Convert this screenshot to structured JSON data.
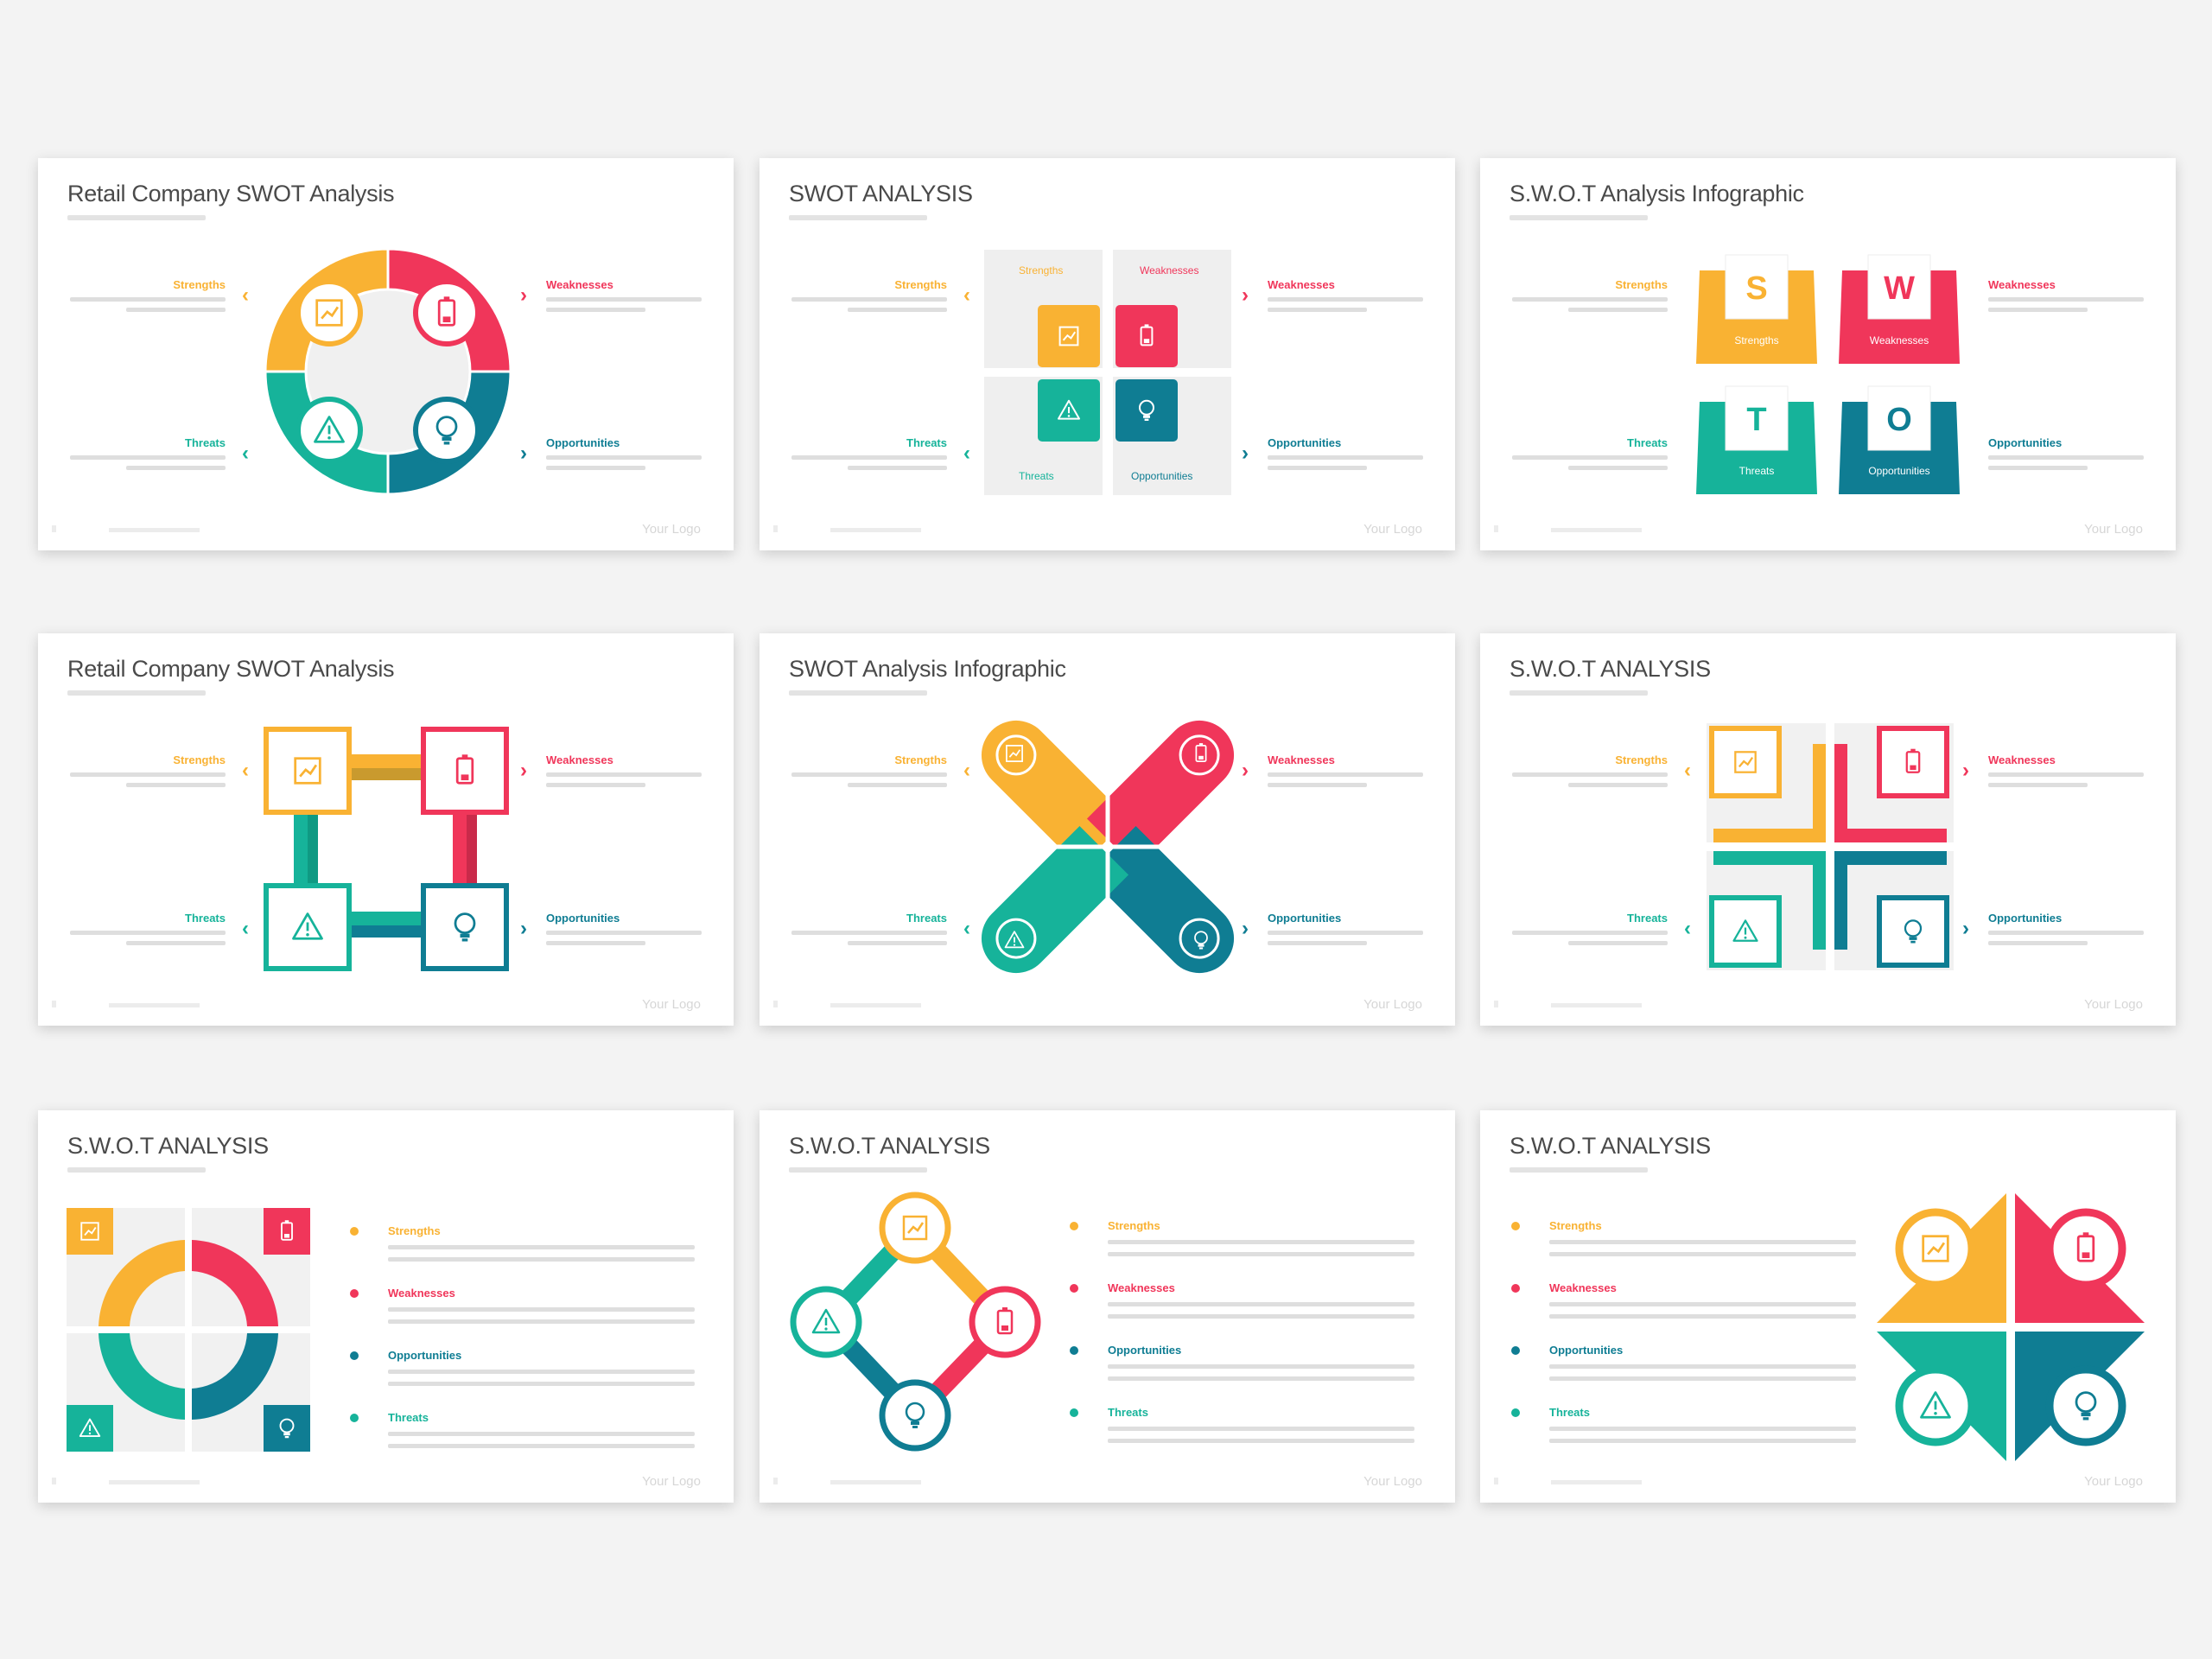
{
  "colors": {
    "strengths": "#f9b233",
    "weaknesses": "#f0365a",
    "threats": "#16b39a",
    "opportunities": "#0f7d93",
    "background": "#f3f3f3"
  },
  "labels": {
    "strengths": "Strengths",
    "weaknesses": "Weaknesses",
    "threats": "Threats",
    "opportunities": "Opportunities"
  },
  "letters": {
    "s": "S",
    "w": "W",
    "o": "O",
    "t": "T"
  },
  "icons": {
    "strengths": "chart-icon",
    "weaknesses": "battery-icon",
    "threats": "warning-triangle-icon",
    "opportunities": "lightbulb-icon"
  },
  "footer_logo": "Your Logo",
  "slides": [
    {
      "title": "Retail Company SWOT Analysis"
    },
    {
      "title": "SWOT ANALYSIS"
    },
    {
      "title": "S.W.O.T Analysis Infographic"
    },
    {
      "title": "Retail Company SWOT Analysis"
    },
    {
      "title": "SWOT Analysis Infographic"
    },
    {
      "title": "S.W.O.T ANALYSIS"
    },
    {
      "title": "S.W.O.T ANALYSIS"
    },
    {
      "title": "S.W.O.T ANALYSIS"
    },
    {
      "title": "S.W.O.T ANALYSIS"
    }
  ]
}
